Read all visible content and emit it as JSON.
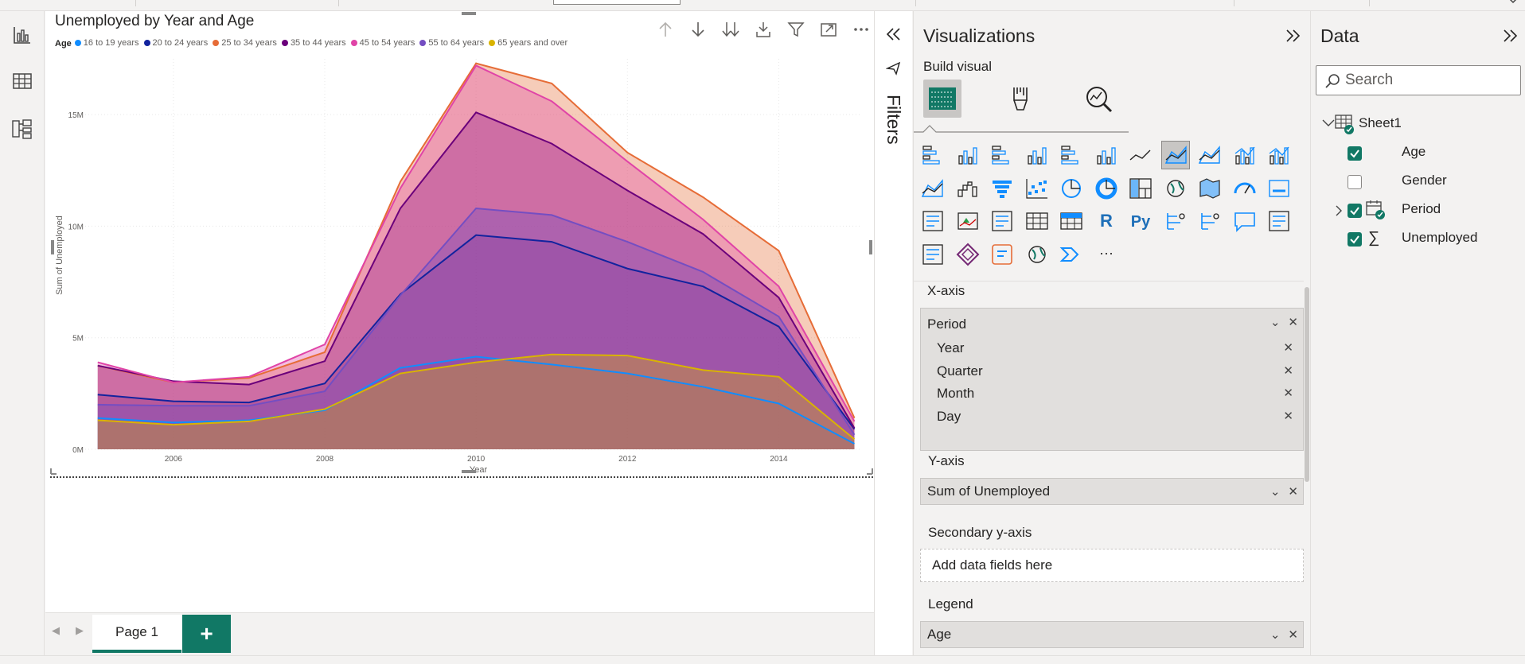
{
  "visual": {
    "title": "Unemployed by Year and Age",
    "legend_title": "Age"
  },
  "chart_data": {
    "type": "area",
    "title": "Unemployed by Year and Age",
    "xlabel": "Year",
    "ylabel": "Sum of Unemployed",
    "x": [
      2005,
      2006,
      2007,
      2008,
      2009,
      2010,
      2011,
      2012,
      2013,
      2014,
      2015
    ],
    "x_ticks": [
      "2006",
      "2008",
      "2010",
      "2012",
      "2014"
    ],
    "y_ticks": [
      "0M",
      "5M",
      "10M",
      "15M"
    ],
    "ylim": [
      0,
      17500000
    ],
    "xlim": [
      2004.75,
      2015.1
    ],
    "legend_position": "top-left",
    "grid": true,
    "series": [
      {
        "name": "16 to 19 years",
        "color": "#118dff",
        "values": [
          1400000,
          1200000,
          1300000,
          1750000,
          3650000,
          4150000,
          3800000,
          3400000,
          2800000,
          2050000,
          250000
        ]
      },
      {
        "name": "20 to 24 years",
        "color": "#12239e",
        "values": [
          2450000,
          2150000,
          2100000,
          2950000,
          6950000,
          9600000,
          9300000,
          8100000,
          7300000,
          5500000,
          900000
        ]
      },
      {
        "name": "25 to 34 years",
        "color": "#e66c37",
        "values": [
          3750000,
          3000000,
          3200000,
          4350000,
          12000000,
          17300000,
          16400000,
          13300000,
          11300000,
          8900000,
          1400000
        ]
      },
      {
        "name": "35 to 44 years",
        "color": "#6b007b",
        "values": [
          3750000,
          3050000,
          2900000,
          3950000,
          10800000,
          15100000,
          13700000,
          11600000,
          9650000,
          6800000,
          950000
        ]
      },
      {
        "name": "45 to 54 years",
        "color": "#e044a7",
        "values": [
          3900000,
          3000000,
          3250000,
          4700000,
          11700000,
          17200000,
          15600000,
          12900000,
          10300000,
          7300000,
          1250000
        ]
      },
      {
        "name": "55 to 64 years",
        "color": "#744ec2",
        "values": [
          2000000,
          1950000,
          1950000,
          2600000,
          6900000,
          10800000,
          10500000,
          9300000,
          7950000,
          5950000,
          650000
        ]
      },
      {
        "name": "65 years and over",
        "color": "#d9b300",
        "values": [
          1300000,
          1100000,
          1250000,
          1800000,
          3400000,
          3900000,
          4250000,
          4200000,
          3550000,
          3250000,
          450000
        ]
      }
    ]
  },
  "filters": {
    "label": "Filters"
  },
  "viz_panel": {
    "title": "Visualizations",
    "build_visual": "Build visual",
    "xaxis_label": "X-axis",
    "xaxis_field": "Period",
    "hierarchy": [
      "Year",
      "Quarter",
      "Month",
      "Day"
    ],
    "yaxis_label": "Y-axis",
    "yaxis_field": "Sum of Unemployed",
    "secondary_label": "Secondary y-axis",
    "secondary_placeholder": "Add data fields here",
    "legend_label": "Legend",
    "legend_field": "Age",
    "r_label": "R",
    "py_label": "Py",
    "more_label": "···"
  },
  "data_panel": {
    "title": "Data",
    "search_placeholder": "Search",
    "table": "Sheet1",
    "fields": [
      {
        "name": "Age",
        "checked": true
      },
      {
        "name": "Gender",
        "checked": false
      },
      {
        "name": "Period",
        "checked": true
      },
      {
        "name": "Unemployed",
        "checked": true
      }
    ]
  },
  "pages": {
    "tab": "Page 1",
    "add": "+"
  }
}
